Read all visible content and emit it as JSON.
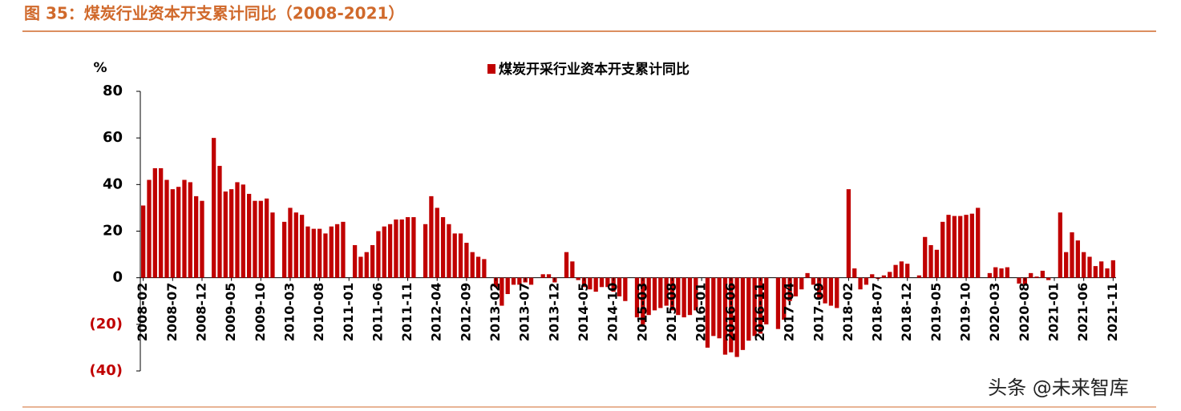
{
  "chart_data": {
    "type": "bar",
    "title": "图 35：煤炭行业资本开支累计同比（2008-2021）",
    "y_axis_label": "%",
    "watermark": "头条 @未来智库",
    "categories": [
      "2008-02",
      null,
      null,
      null,
      null,
      "2008-07",
      null,
      null,
      null,
      null,
      "2008-12",
      null,
      null,
      null,
      null,
      "2009-05",
      null,
      null,
      null,
      null,
      "2009-10",
      null,
      null,
      null,
      null,
      "2010-03",
      null,
      null,
      null,
      null,
      "2010-08",
      null,
      null,
      null,
      null,
      "2011-01",
      null,
      null,
      null,
      null,
      "2011-06",
      null,
      null,
      null,
      null,
      "2011-11",
      null,
      null,
      null,
      null,
      "2012-04",
      null,
      null,
      null,
      null,
      "2012-09",
      null,
      null,
      null,
      null,
      "2013-02",
      null,
      null,
      null,
      null,
      "2013-07",
      null,
      null,
      null,
      null,
      "2013-12",
      null,
      null,
      null,
      null,
      "2014-05",
      null,
      null,
      null,
      null,
      "2014-10",
      null,
      null,
      null,
      null,
      "2015-03",
      null,
      null,
      null,
      null,
      "2015-08",
      null,
      null,
      null,
      null,
      "2016-01",
      null,
      null,
      null,
      null,
      "2016-06",
      null,
      null,
      null,
      null,
      "2016-11",
      null,
      null,
      null,
      null,
      "2017-04",
      null,
      null,
      null,
      null,
      "2017-09",
      null,
      null,
      null,
      null,
      "2018-02",
      null,
      null,
      null,
      null,
      "2018-07",
      null,
      null,
      null,
      null,
      "2018-12",
      null,
      null,
      null,
      null,
      "2019-05",
      null,
      null,
      null,
      null,
      "2019-10",
      null,
      null,
      null,
      null,
      "2020-03",
      null,
      null,
      null,
      null,
      "2020-08",
      null,
      null,
      null,
      null,
      "2021-01",
      null,
      null,
      null,
      null,
      "2021-06",
      null,
      null,
      null,
      null,
      "2021-11"
    ],
    "series": [
      {
        "name": "煤炭开采行业资本开支累计同比",
        "color": "#c00000",
        "values": [
          31,
          42,
          47,
          47,
          42,
          38,
          39,
          42,
          41,
          35,
          33,
          null,
          60,
          48,
          37,
          38,
          41,
          40,
          36,
          33,
          33,
          34,
          28,
          null,
          24,
          30,
          28,
          27,
          22,
          21,
          21,
          19,
          22,
          23,
          24,
          null,
          14,
          9,
          11,
          14,
          20,
          22,
          23,
          25,
          25,
          26,
          26,
          null,
          23,
          35,
          30,
          26,
          23,
          19,
          19,
          15,
          11,
          9,
          8,
          null,
          -4,
          -12,
          -7,
          -3,
          -3,
          -2,
          -3,
          0,
          1.5,
          1.5,
          -2,
          null,
          11,
          7,
          -1,
          -4,
          -5,
          -6,
          -4,
          -4,
          -6,
          -8,
          -10,
          null,
          -17,
          -20,
          -16,
          -14,
          -13,
          -12,
          -14,
          -16,
          -17,
          -16,
          -14,
          null,
          -30,
          -25,
          -26,
          -33,
          -32,
          -34,
          -31,
          -27,
          -25,
          -24,
          -20,
          null,
          -22,
          -18,
          -10,
          -8,
          -5,
          2,
          -3,
          -9,
          -11,
          -12,
          -13,
          null,
          38,
          4,
          -5,
          -3,
          1.5,
          -0.5,
          1,
          2.5,
          5.5,
          7,
          6,
          null,
          1,
          17.5,
          14,
          12,
          24,
          27,
          26.5,
          26.5,
          27,
          27.5,
          30,
          null,
          2,
          4.5,
          4,
          4.5,
          0,
          -2.5,
          -3,
          2,
          0.5,
          3,
          -1,
          null,
          28,
          11,
          19.5,
          16,
          11,
          9,
          5,
          7,
          4,
          7.5
        ]
      }
    ],
    "ylim": [
      -40,
      80
    ],
    "yticks": [
      80,
      60,
      40,
      20,
      0,
      {
        "value": -20,
        "label": "(20)"
      },
      {
        "value": -40,
        "label": "(40)"
      }
    ],
    "negative_tick_color": "#c00000",
    "legend": "top"
  }
}
